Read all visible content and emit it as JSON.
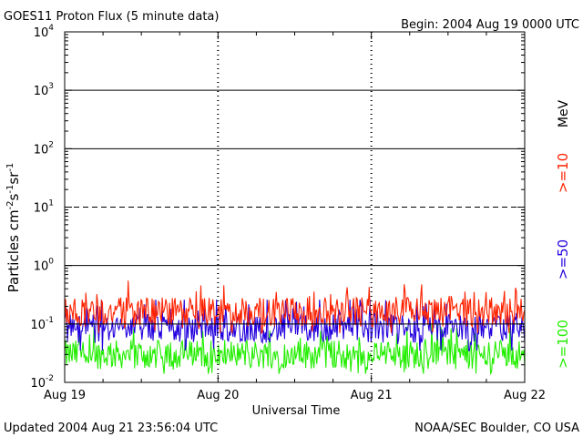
{
  "header": {
    "title": "GOES11 Proton Flux (5 minute data)",
    "begin": "Begin: 2004 Aug 19 0000 UTC"
  },
  "footer": {
    "updated": "Updated 2004 Aug 21 23:56:04 UTC",
    "credit": "NOAA/SEC Boulder, CO USA"
  },
  "chart_data": {
    "type": "line",
    "title": "GOES11 Proton Flux (5 minute data)",
    "xlabel": "Universal Time",
    "ylabel": "Particles cm^-2 s^-1 sr^-1",
    "yscale": "log",
    "ylim": [
      0.01,
      10000
    ],
    "xlim_days": [
      0,
      3
    ],
    "x_tick_labels": [
      "Aug 19",
      "Aug 20",
      "Aug 21",
      "Aug 22"
    ],
    "y_ticks": [
      {
        "value": 0.01,
        "base": "10",
        "exp": "-2"
      },
      {
        "value": 0.1,
        "base": "10",
        "exp": "-1"
      },
      {
        "value": 1,
        "base": "10",
        "exp": "0"
      },
      {
        "value": 10,
        "base": "10",
        "exp": "1"
      },
      {
        "value": 100,
        "base": "10",
        "exp": "2"
      },
      {
        "value": 1000,
        "base": "10",
        "exp": "3"
      },
      {
        "value": 10000,
        "base": "10",
        "exp": "4"
      }
    ],
    "reference_lines": [
      {
        "value": 10,
        "style": "dashed"
      },
      {
        "value": 100,
        "style": "solid"
      },
      {
        "value": 1000,
        "style": "solid"
      },
      {
        "value": 1,
        "style": "solid"
      },
      {
        "value": 0.1,
        "style": "solid"
      }
    ],
    "unit_label": "MeV",
    "series": [
      {
        "name": ">=10",
        "color": "#ff2200",
        "baseline": 0.16,
        "min": 0.07,
        "max": 0.55
      },
      {
        "name": ">=50",
        "color": "#2200dd",
        "baseline": 0.085,
        "min": 0.035,
        "max": 0.26
      },
      {
        "name": ">=100",
        "color": "#22ee00",
        "baseline": 0.03,
        "min": 0.014,
        "max": 0.1
      }
    ]
  }
}
